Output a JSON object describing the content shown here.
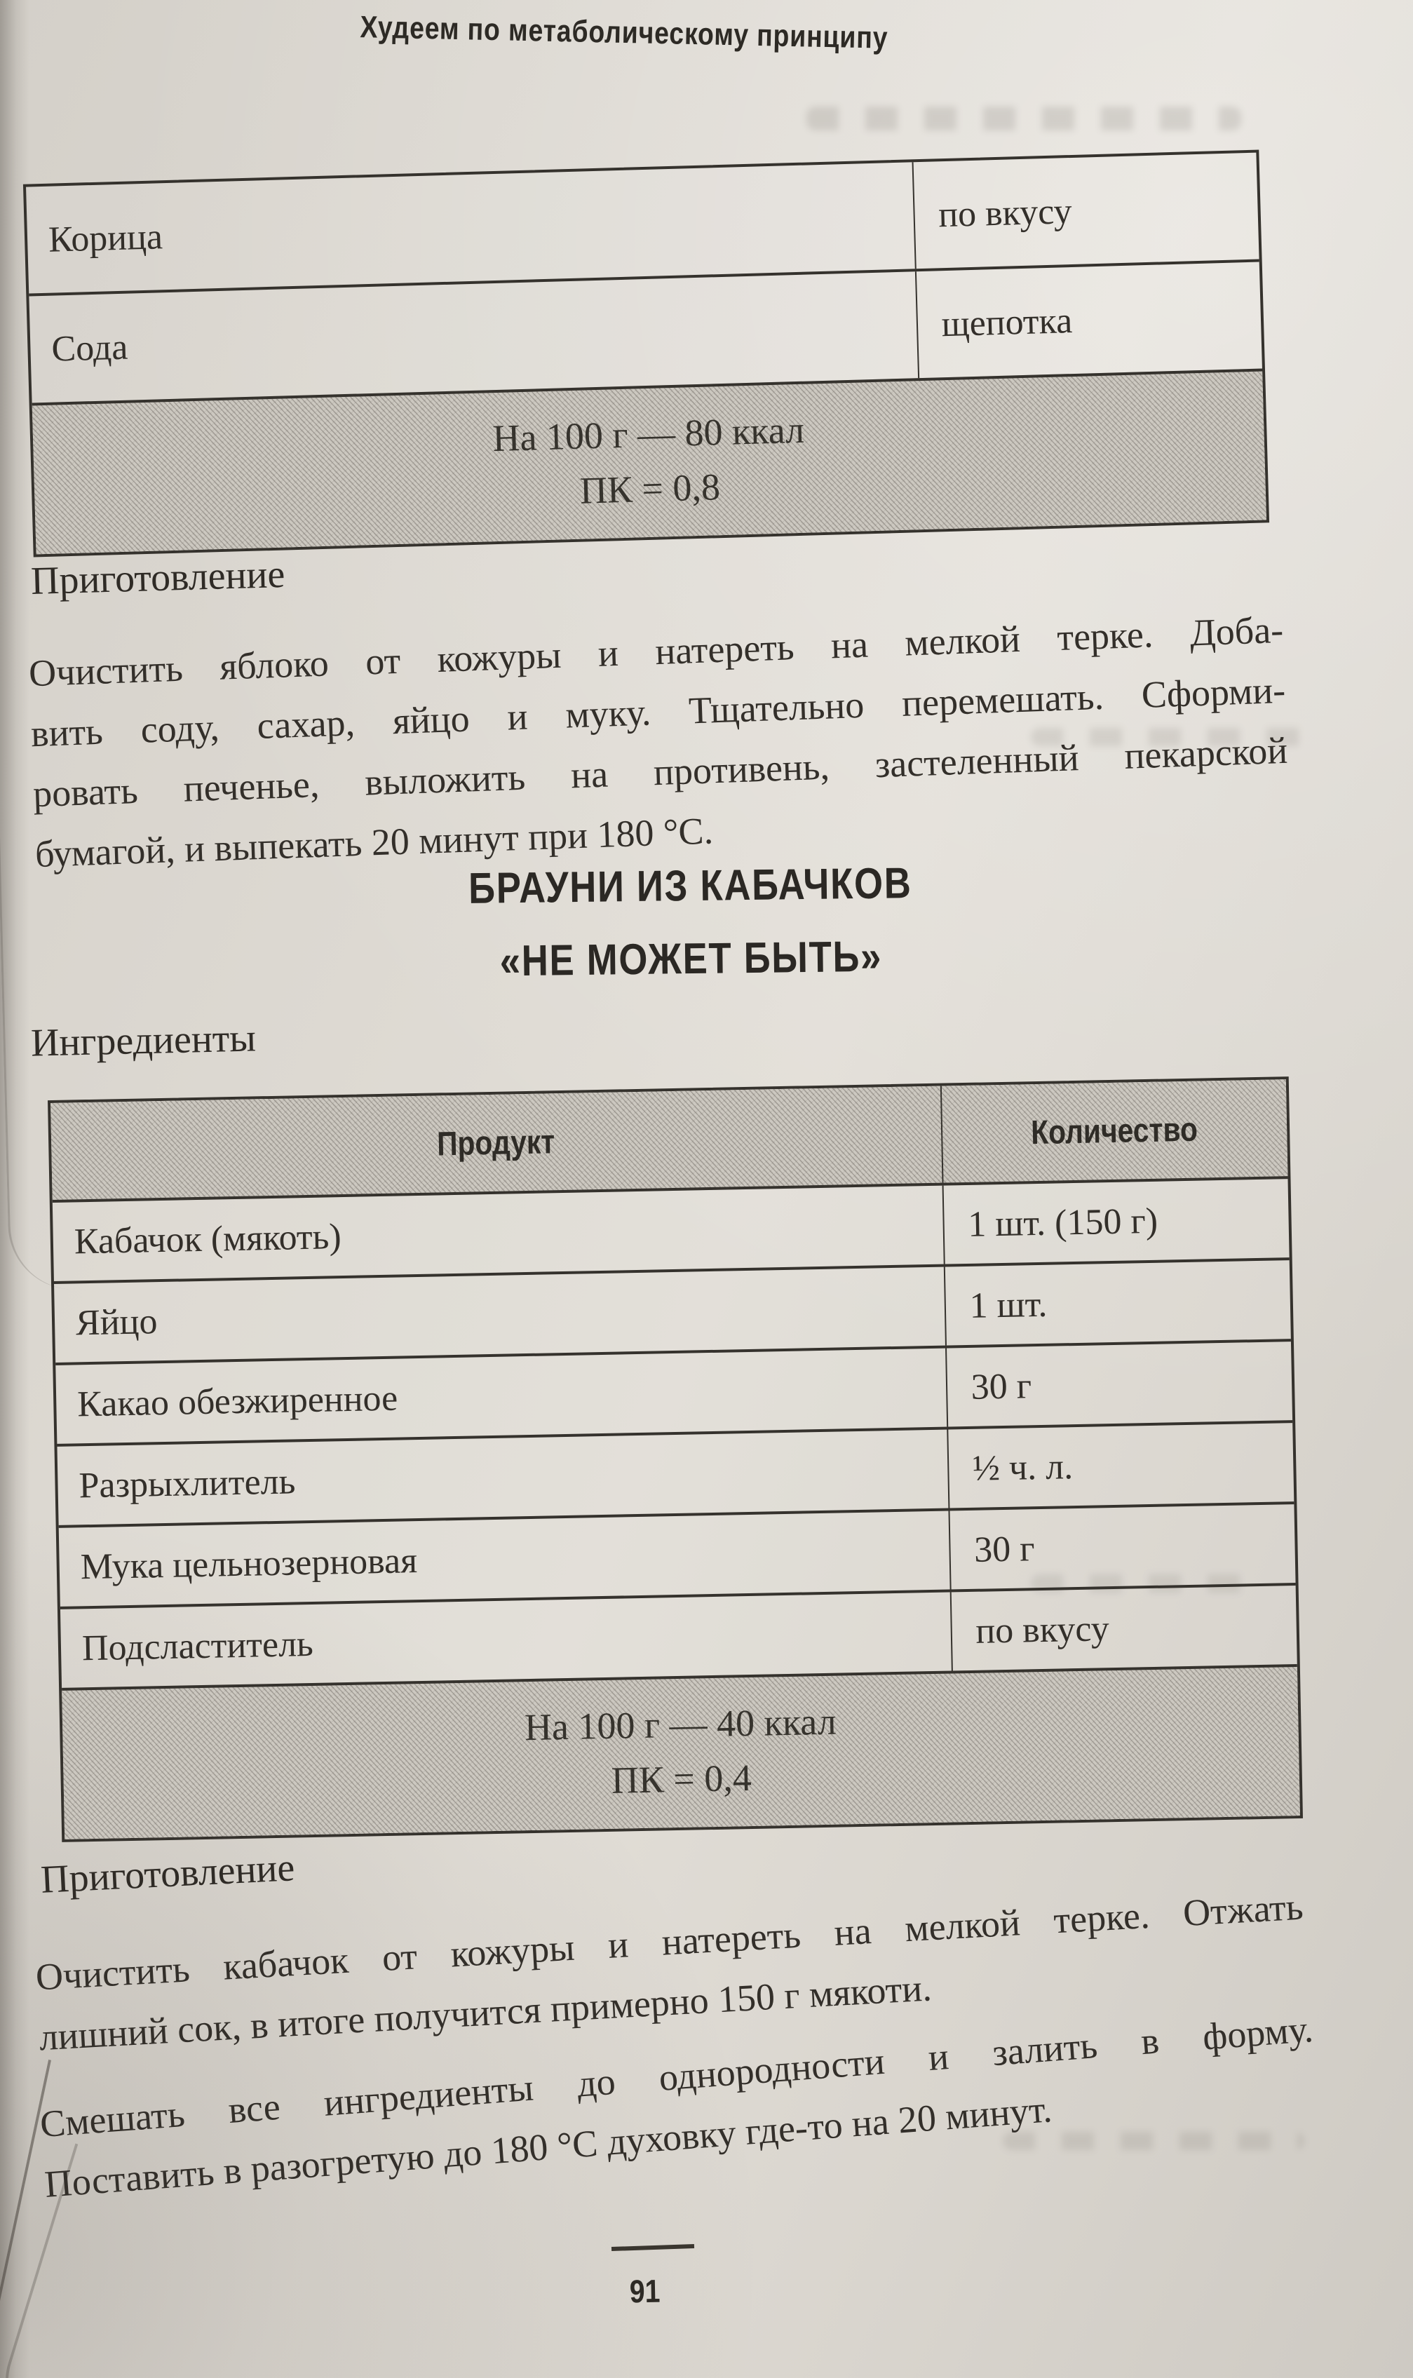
{
  "page": {
    "running_header": "Худеем по метаболическому принципу",
    "page_number": "91"
  },
  "recipe_apple": {
    "table_rows": [
      {
        "product": "Корица",
        "qty": "по вкусу"
      },
      {
        "product": "Сода",
        "qty": "щепотка"
      }
    ],
    "summary_line1": "На 100 г — 80 ккал",
    "summary_line2": "ПК = 0,8",
    "preparation_heading": "Приготовление",
    "prep_lines": [
      "Очистить яблоко от кожуры и натереть на мелкой терке. Доба-",
      "вить соду, сахар, яйцо и муку. Тщательно перемешать. Сформи-",
      "ровать печенье, выложить на противень, застеленный пекарской",
      "бумагой, и выпекать 20 минут при 180 °С."
    ]
  },
  "recipe_brownie": {
    "title_line1": "БРАУНИ ИЗ КАБАЧКОВ",
    "title_line2": "«НЕ МОЖЕТ БЫТЬ»",
    "ingredients_heading": "Ингредиенты",
    "table": {
      "col1": "Продукт",
      "col2": "Количество",
      "rows": [
        [
          "Кабачок (мякоть)",
          "1 шт. (150 г)"
        ],
        [
          "Яйцо",
          "1 шт."
        ],
        [
          "Какао обезжиренное",
          "30 г"
        ],
        [
          "Разрыхлитель",
          "½ ч. л."
        ],
        [
          "Мука цельнозерновая",
          "30 г"
        ],
        [
          "Подсластитель",
          "по вкусу"
        ]
      ]
    },
    "summary_line1": "На 100 г — 40 ккал",
    "summary_line2": "ПК = 0,4",
    "preparation_heading": "Приготовление",
    "prep1_lines": [
      "Очистить кабачок от кожуры и натереть на мелкой терке. Отжать",
      "лишний сок, в итоге получится примерно 150 г мякоти."
    ],
    "prep2_lines": [
      "Смешать все ингредиенты до однородности и залить в форму.",
      "Поставить в разогретую до 180 °С духовку где-то на 20 минут."
    ]
  }
}
